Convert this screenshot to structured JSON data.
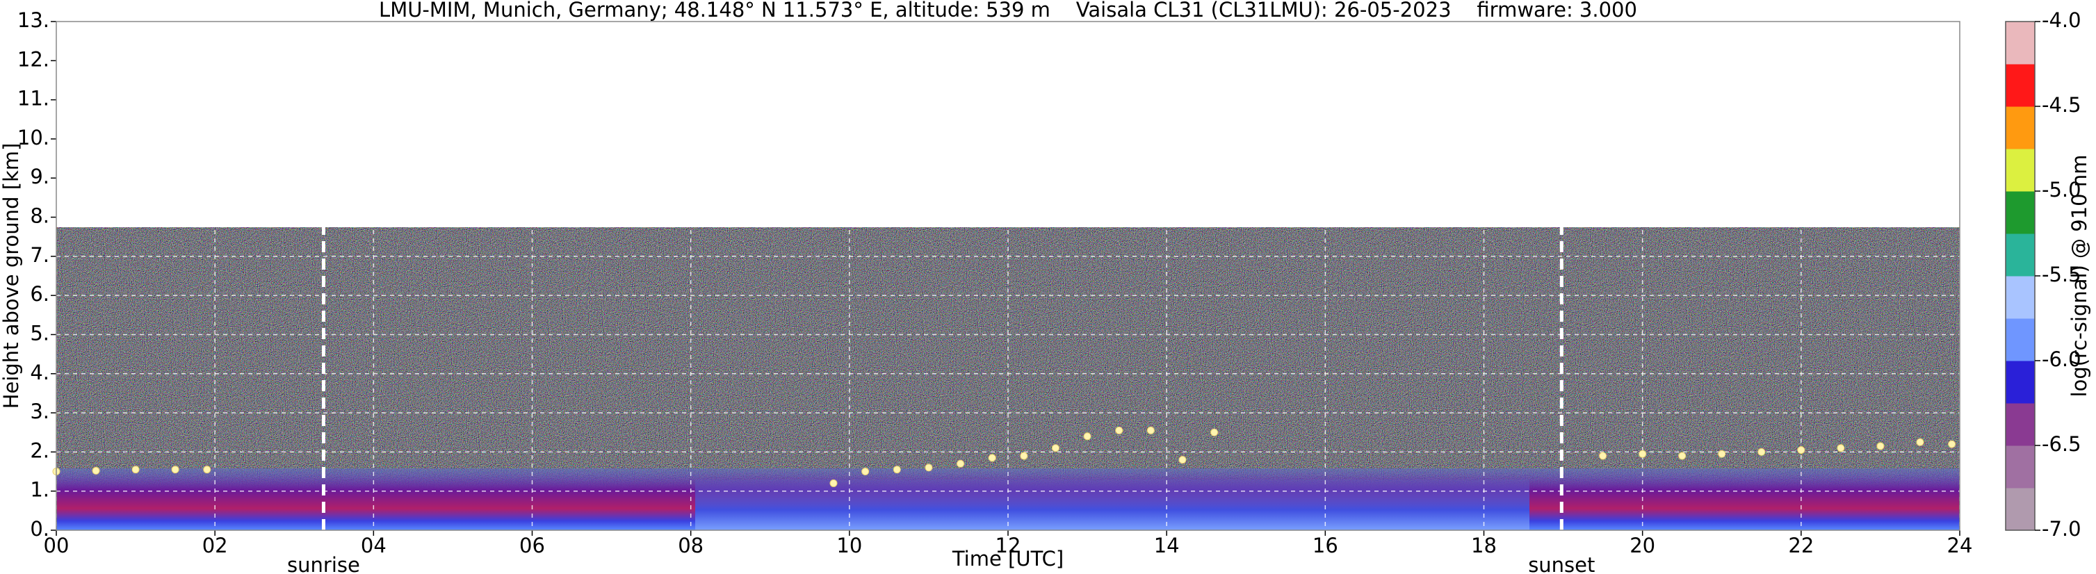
{
  "chart_data": {
    "type": "scatter",
    "title": "LMU-MIM, Munich, Germany; 48.148° N 11.573° E, altitude: 539 m    Vaisala CL31 (CL31LMU): 26-05-2023    firmware: 3.000",
    "x_label": "Time [UTC]",
    "y_label": "Height above ground [km]",
    "xlim": [
      0,
      24
    ],
    "xticks": [
      {
        "value": 0,
        "label": "00"
      },
      {
        "value": 2,
        "label": "02"
      },
      {
        "value": 4,
        "label": "04"
      },
      {
        "value": 6,
        "label": "06"
      },
      {
        "value": 8,
        "label": "08"
      },
      {
        "value": 10,
        "label": "10"
      },
      {
        "value": 12,
        "label": "12"
      },
      {
        "value": 14,
        "label": "14"
      },
      {
        "value": 16,
        "label": "16"
      },
      {
        "value": 18,
        "label": "18"
      },
      {
        "value": 20,
        "label": "20"
      },
      {
        "value": 22,
        "label": "22"
      },
      {
        "value": 24,
        "label": "24"
      }
    ],
    "ylim": [
      0,
      13
    ],
    "yticks": [
      {
        "value": 0,
        "label": "0."
      },
      {
        "value": 1,
        "label": "1."
      },
      {
        "value": 2,
        "label": "2."
      },
      {
        "value": 3,
        "label": "3."
      },
      {
        "value": 4,
        "label": "4."
      },
      {
        "value": 5,
        "label": "5."
      },
      {
        "value": 6,
        "label": "6."
      },
      {
        "value": 7,
        "label": "7."
      },
      {
        "value": 8,
        "label": "8."
      },
      {
        "value": 9,
        "label": "9."
      },
      {
        "value": 10,
        "label": "10."
      },
      {
        "value": 11,
        "label": "11."
      },
      {
        "value": 12,
        "label": "12."
      },
      {
        "value": 13,
        "label": "13."
      }
    ],
    "grid": true,
    "x": [
      0,
      0.5,
      1,
      1.5,
      1.9,
      9.8,
      10.2,
      10.6,
      11,
      11.4,
      11.8,
      12.2,
      12.6,
      13,
      13.4,
      13.8,
      14.2,
      14.6,
      19.5,
      20,
      20.5,
      21,
      21.5,
      22,
      22.5,
      23,
      23.5,
      23.9
    ],
    "values": [
      1.5,
      1.52,
      1.55,
      1.55,
      1.55,
      1.2,
      1.5,
      1.55,
      1.6,
      1.7,
      1.85,
      1.9,
      2.1,
      2.4,
      2.55,
      2.55,
      1.8,
      2.5,
      1.9,
      1.95,
      1.9,
      1.95,
      2.0,
      2.05,
      2.1,
      2.15,
      2.25,
      2.2
    ],
    "color": "#fff4b0",
    "annotations": [
      {
        "text": "sunrise",
        "x": 3.37
      },
      {
        "text": "sunset",
        "x": 18.98
      }
    ],
    "colorbar": {
      "label": "log(rc-signal) @ 910 nm",
      "lim": [
        -7,
        -4
      ],
      "ticks": [
        {
          "value": -4,
          "label": "-4.0"
        },
        -4.5,
        {
          "value": -5,
          "label": "-5.0"
        },
        -5.5,
        {
          "value": -6,
          "label": "-6.0"
        },
        -6.5,
        {
          "value": -7,
          "label": "-7.0"
        }
      ],
      "colors": [
        "#b09aae",
        "#a070a2",
        "#8a3a92",
        "#2a20d8",
        "#6f96ff",
        "#a9c4ff",
        "#2ab49a",
        "#1e9a2e",
        "#dcf040",
        "#ff9a10",
        "#ff1818",
        "#eab8bc"
      ]
    }
  }
}
